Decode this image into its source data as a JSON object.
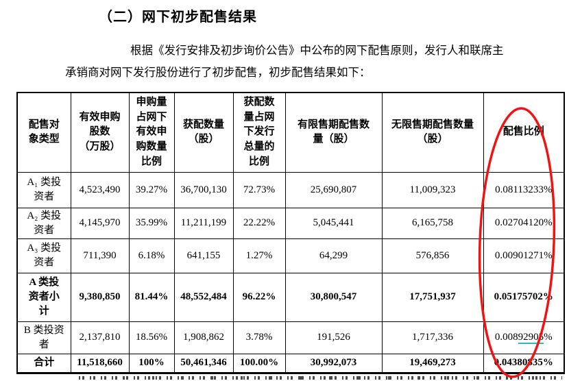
{
  "page": {
    "heading": "（二）网下初步配售结果",
    "paragraph": {
      "line1": "根据《发行安排及初步询价公告》中公布的网下配售原则，发行人和联席主",
      "line2": "承销商对网下发行股份进行了初步配售，初步配售结果如下："
    }
  },
  "table": {
    "headers": [
      "配售对\n象类型",
      "有效申购\n股数\n（万股）",
      "申购量\n占网下\n有效申\n购数量\n比例",
      "获配数量\n（股）",
      "获配数\n量占网\n下发行\n总量的\n比例",
      "有限售期配售数\n量（股）",
      "无限售期配售数量\n（股）",
      "配售比例"
    ],
    "rows": [
      {
        "label": "A₁ 类投\n资者",
        "bold": false,
        "cells": [
          "4,523,490",
          "39.27%",
          "36,700,130",
          "72.73%",
          "25,690,807",
          "11,009,323",
          "0.08113233%"
        ]
      },
      {
        "label": "A₂ 类投\n资者",
        "bold": false,
        "cells": [
          "4,145,970",
          "35.99%",
          "11,211,199",
          "22.22%",
          "5,045,441",
          "6,165,758",
          "0.02704120%"
        ]
      },
      {
        "label": "A₃ 类投\n资者",
        "bold": false,
        "cells": [
          "711,390",
          "6.18%",
          "641,155",
          "1.27%",
          "64,299",
          "576,856",
          "0.00901271%"
        ]
      },
      {
        "label": "A 类投\n资者小\n计",
        "bold": true,
        "cells": [
          "9,380,850",
          "81.44%",
          "48,552,484",
          "96.22%",
          "30,800,547",
          "17,751,937",
          "0.05175702%"
        ]
      },
      {
        "label": "B 类投资\n者",
        "bold": false,
        "cells": [
          "2,137,810",
          "18.56%",
          "1,908,862",
          "3.78%",
          "191,526",
          "1,717,336",
          {
            "parts": [
              {
                "t": "0.008"
              },
              {
                "t": "92905",
                "underline": true
              },
              {
                "t": "%"
              }
            ]
          }
        ]
      },
      {
        "label": "合计",
        "bold": true,
        "cells": [
          "11,518,660",
          "100%",
          "50,461,346",
          "100.00%",
          "30,992,073",
          "19,469,273",
          "0.04380835%"
        ]
      }
    ]
  },
  "annotation": {
    "circled_column": "配售比例",
    "circle_color": "#f21212",
    "underline_color": "#2fb9c7"
  }
}
